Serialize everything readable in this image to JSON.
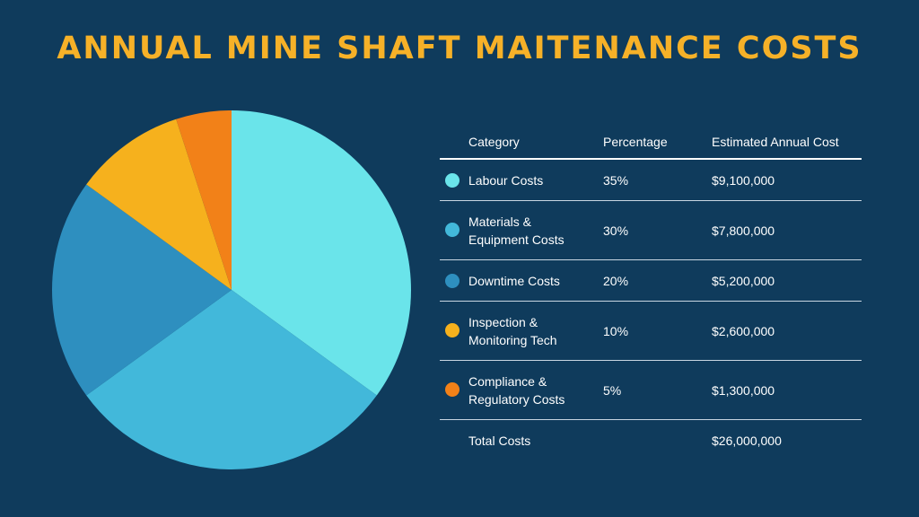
{
  "title": "ANNUAL MINE SHAFT MAITENANCE COSTS",
  "colors": {
    "background": "#0f3b5c",
    "title": "#f6b128"
  },
  "table": {
    "headers": {
      "category": "Category",
      "percentage": "Percentage",
      "cost": "Estimated Annual Cost"
    },
    "rows": [
      {
        "line1": "Labour Costs",
        "line2": "",
        "percentage": "35%",
        "cost": "$9,100,000",
        "color": "#6ae4ea"
      },
      {
        "line1": "Materials &",
        "line2": "Equipment Costs",
        "percentage": "30%",
        "cost": "$7,800,000",
        "color": "#42b8da"
      },
      {
        "line1": "Downtime Costs",
        "line2": "",
        "percentage": "20%",
        "cost": "$5,200,000",
        "color": "#2e8fbf"
      },
      {
        "line1": "Inspection &",
        "line2": "Monitoring Tech",
        "percentage": "10%",
        "cost": "$2,600,000",
        "color": "#f6b11d"
      },
      {
        "line1": "Compliance &",
        "line2": "Regulatory Costs",
        "percentage": "5%",
        "cost": "$1,300,000",
        "color": "#f28118"
      }
    ],
    "total": {
      "label": "Total Costs",
      "cost": "$26,000,000"
    }
  },
  "chart_data": {
    "type": "pie",
    "categories": [
      "Labour Costs",
      "Materials & Equipment Costs",
      "Downtime Costs",
      "Inspection & Monitoring Tech",
      "Compliance & Regulatory Costs"
    ],
    "values": [
      35,
      30,
      20,
      10,
      5
    ],
    "colors": [
      "#6ae4ea",
      "#42b8da",
      "#2e8fbf",
      "#f6b11d",
      "#f28118"
    ],
    "start": "12 o'clock",
    "direction": "clockwise"
  }
}
